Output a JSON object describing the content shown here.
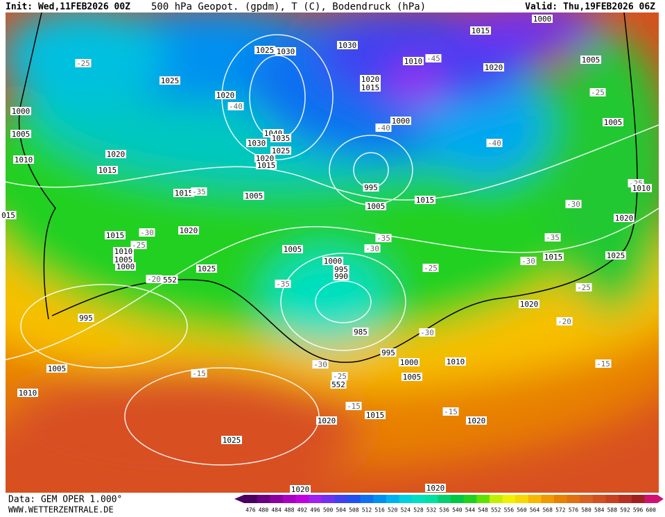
{
  "header": {
    "init": "Init: Wed,11FEB2026 00Z",
    "title": "500 hPa Geopot. (gpdm), T (C), Bodendruck (hPa)",
    "valid": "Valid: Thu,19FEB2026 06Z"
  },
  "map": {
    "labels": [
      "1000",
      "1015",
      "1025",
      "1030",
      "1030",
      "1005",
      "1020",
      "1010",
      "-45",
      "-25",
      "1025",
      "1020",
      "1015",
      "1020",
      "-40",
      "-25",
      "1000",
      "1005",
      "1000",
      "-40",
      "1040",
      "1035",
      "1030",
      "1025",
      "1020",
      "1015",
      "1005",
      "-40",
      "1020",
      "1010",
      "1015",
      "995",
      "1015",
      "-35",
      "1005",
      "1005",
      "1015",
      "-25",
      "1010",
      "-30",
      "1020",
      "1015",
      "-30",
      "1020",
      "-25",
      "1010",
      "1005",
      "1000",
      "-35",
      "-35",
      "1005",
      "-30",
      "1000",
      "995",
      "990",
      "1025",
      "-25",
      "1015",
      "1025",
      "-30",
      "-20",
      "552",
      "-35",
      "-25",
      "1020",
      "995",
      "-20",
      "985",
      "-30",
      "995",
      "1000",
      "1010",
      "-15",
      "1005",
      "-30",
      "-15",
      "-25",
      "1005",
      "552",
      "1010",
      "-15",
      "1015",
      "-15",
      "1020",
      "1020",
      "1025",
      "1020",
      "1020",
      "015"
    ]
  },
  "footer": {
    "data": "Data: GEM OPER 1.000°",
    "site": "WWW.WETTERZENTRALE.DE"
  },
  "colorbar": {
    "values": [
      476,
      480,
      484,
      488,
      492,
      496,
      500,
      504,
      508,
      512,
      516,
      520,
      524,
      528,
      532,
      536,
      540,
      544,
      548,
      552,
      556,
      560,
      564,
      568,
      572,
      576,
      580,
      584,
      588,
      592,
      596,
      600
    ],
    "colors": [
      "#4b0060",
      "#6a0080",
      "#8a00a0",
      "#a800c0",
      "#c000e0",
      "#a020f0",
      "#7030f0",
      "#4040f0",
      "#2050f0",
      "#1070f0",
      "#0090f0",
      "#00b0f0",
      "#00d0e0",
      "#00e0c0",
      "#00e0a0",
      "#00d070",
      "#00c840",
      "#20d020",
      "#60e000",
      "#c0f000",
      "#f0f000",
      "#f8d800",
      "#f8b800",
      "#f09800",
      "#e88000",
      "#e07010",
      "#d86020",
      "#d05020",
      "#c84020",
      "#b83020",
      "#a02020",
      "#d01070"
    ]
  }
}
